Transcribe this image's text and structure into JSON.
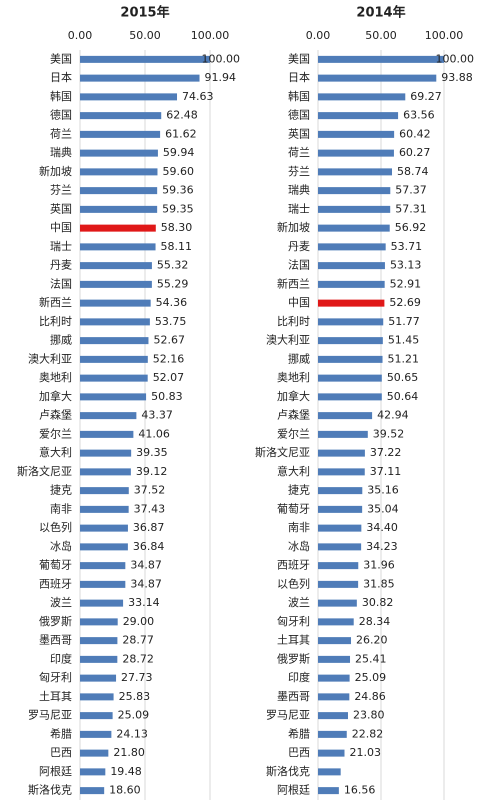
{
  "chart_data": [
    {
      "type": "bar",
      "orientation": "horizontal",
      "title": "2015年",
      "categories": [
        "美国",
        "日本",
        "韩国",
        "德国",
        "荷兰",
        "瑞典",
        "新加坡",
        "芬兰",
        "英国",
        "中国",
        "瑞士",
        "丹麦",
        "法国",
        "新西兰",
        "比利时",
        "挪威",
        "澳大利亚",
        "奥地利",
        "加拿大",
        "卢森堡",
        "爱尔兰",
        "意大利",
        "斯洛文尼亚",
        "捷克",
        "南非",
        "以色列",
        "冰岛",
        "葡萄牙",
        "西班牙",
        "波兰",
        "俄罗斯",
        "墨西哥",
        "印度",
        "匈牙利",
        "土耳其",
        "罗马尼亚",
        "希腊",
        "巴西",
        "阿根廷",
        "斯洛伐克"
      ],
      "values": [
        100,
        91.94,
        74.63,
        62.48,
        61.62,
        59.94,
        59.6,
        59.36,
        59.35,
        58.3,
        58.11,
        55.32,
        55.29,
        54.36,
        53.75,
        52.67,
        52.16,
        52.07,
        50.83,
        43.37,
        41.06,
        39.35,
        39.12,
        37.52,
        37.43,
        36.87,
        36.84,
        34.87,
        34.87,
        33.14,
        29,
        28.77,
        28.72,
        27.73,
        25.83,
        25.09,
        24.13,
        21.8,
        19.48,
        18.6
      ],
      "value_labels": [
        "100.00",
        "91.94",
        "74.63",
        "62.48",
        "61.62",
        "59.94",
        "59.60",
        "59.36",
        "59.35",
        "58.30",
        "58.11",
        "55.32",
        "55.29",
        "54.36",
        "53.75",
        "52.67",
        "52.16",
        "52.07",
        "50.83",
        "43.37",
        "41.06",
        "39.35",
        "39.12",
        "37.52",
        "37.43",
        "36.87",
        "36.84",
        "34.87",
        "34.87",
        "33.14",
        "29.00",
        "28.77",
        "28.72",
        "27.73",
        "25.83",
        "25.09",
        "24.13",
        "21.80",
        "19.48",
        "18.60"
      ],
      "colors": [
        "#4f7cb8",
        "#4f7cb8",
        "#4f7cb8",
        "#4f7cb8",
        "#4f7cb8",
        "#4f7cb8",
        "#4f7cb8",
        "#4f7cb8",
        "#4f7cb8",
        "#e01818",
        "#4f7cb8",
        "#4f7cb8",
        "#4f7cb8",
        "#4f7cb8",
        "#4f7cb8",
        "#4f7cb8",
        "#4f7cb8",
        "#4f7cb8",
        "#4f7cb8",
        "#4f7cb8",
        "#4f7cb8",
        "#4f7cb8",
        "#4f7cb8",
        "#4f7cb8",
        "#4f7cb8",
        "#4f7cb8",
        "#4f7cb8",
        "#4f7cb8",
        "#4f7cb8",
        "#4f7cb8",
        "#4f7cb8",
        "#4f7cb8",
        "#4f7cb8",
        "#4f7cb8",
        "#4f7cb8",
        "#4f7cb8",
        "#4f7cb8",
        "#4f7cb8",
        "#4f7cb8",
        "#4f7cb8"
      ],
      "xlim": [
        0,
        100
      ],
      "xticks": [
        {
          "value": 0,
          "label": "0.00"
        },
        {
          "value": 50,
          "label": "50.00"
        },
        {
          "value": 100,
          "label": "100.00"
        }
      ],
      "grid": true
    },
    {
      "type": "bar",
      "orientation": "horizontal",
      "title": "2014年",
      "categories": [
        "美国",
        "日本",
        "韩国",
        "德国",
        "英国",
        "荷兰",
        "芬兰",
        "瑞典",
        "瑞士",
        "新加坡",
        "丹麦",
        "法国",
        "新西兰",
        "中国",
        "比利时",
        "澳大利亚",
        "挪威",
        "奥地利",
        "加拿大",
        "卢森堡",
        "爱尔兰",
        "斯洛文尼亚",
        "意大利",
        "捷克",
        "葡萄牙",
        "南非",
        "冰岛",
        "西班牙",
        "以色列",
        "波兰",
        "匈牙利",
        "土耳其",
        "俄罗斯",
        "印度",
        "墨西哥",
        "罗马尼亚",
        "希腊",
        "巴西",
        "斯洛伐克",
        "阿根廷"
      ],
      "values": [
        100,
        93.88,
        69.27,
        63.56,
        60.42,
        60.27,
        58.74,
        57.37,
        57.31,
        56.92,
        53.71,
        53.13,
        52.91,
        52.69,
        51.77,
        51.45,
        51.21,
        50.65,
        50.64,
        42.94,
        39.52,
        37.22,
        37.11,
        35.16,
        35.04,
        34.4,
        34.23,
        31.96,
        31.85,
        30.82,
        28.34,
        26.2,
        25.41,
        25.09,
        24.86,
        23.8,
        22.82,
        21.03,
        18,
        16.56
      ],
      "value_labels": [
        "100.00",
        "93.88",
        "69.27",
        "63.56",
        "60.42",
        "60.27",
        "58.74",
        "57.37",
        "57.31",
        "56.92",
        "53.71",
        "53.13",
        "52.91",
        "52.69",
        "51.77",
        "51.45",
        "51.21",
        "50.65",
        "50.64",
        "42.94",
        "39.52",
        "37.22",
        "37.11",
        "35.16",
        "35.04",
        "34.40",
        "34.23",
        "31.96",
        "31.85",
        "30.82",
        "28.34",
        "26.20",
        "25.41",
        "25.09",
        "24.86",
        "23.80",
        "22.82",
        "21.03",
        null,
        "16.56"
      ],
      "colors": [
        "#4f7cb8",
        "#4f7cb8",
        "#4f7cb8",
        "#4f7cb8",
        "#4f7cb8",
        "#4f7cb8",
        "#4f7cb8",
        "#4f7cb8",
        "#4f7cb8",
        "#4f7cb8",
        "#4f7cb8",
        "#4f7cb8",
        "#4f7cb8",
        "#e01818",
        "#4f7cb8",
        "#4f7cb8",
        "#4f7cb8",
        "#4f7cb8",
        "#4f7cb8",
        "#4f7cb8",
        "#4f7cb8",
        "#4f7cb8",
        "#4f7cb8",
        "#4f7cb8",
        "#4f7cb8",
        "#4f7cb8",
        "#4f7cb8",
        "#4f7cb8",
        "#4f7cb8",
        "#4f7cb8",
        "#4f7cb8",
        "#4f7cb8",
        "#4f7cb8",
        "#4f7cb8",
        "#4f7cb8",
        "#4f7cb8",
        "#4f7cb8",
        "#4f7cb8",
        "#4f7cb8",
        "#4f7cb8"
      ],
      "xlim": [
        0,
        100
      ],
      "xticks": [
        {
          "value": 0,
          "label": "0.00"
        },
        {
          "value": 50,
          "label": "50.00"
        },
        {
          "value": 100,
          "label": "100.00"
        }
      ],
      "grid": true
    }
  ]
}
